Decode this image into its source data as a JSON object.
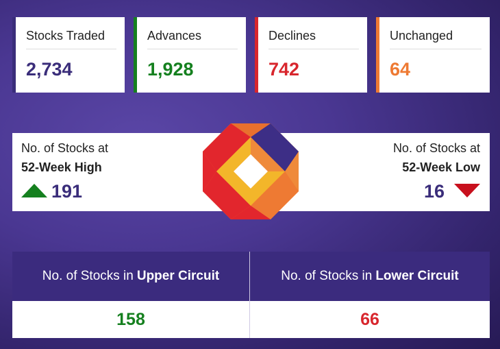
{
  "cards": [
    {
      "label": "Stocks Traded",
      "value": "2,734",
      "color": "#3a2d7a"
    },
    {
      "label": "Advances",
      "value": "1,928",
      "color": "#15801f"
    },
    {
      "label": "Declines",
      "value": "742",
      "color": "#d8262d"
    },
    {
      "label": "Unchanged",
      "value": "64",
      "color": "#ee7a33"
    }
  ],
  "week52": {
    "high_line1": "No. of Stocks at",
    "high_line2": "52-Week High",
    "high_value": "191",
    "high_icon": "triangle-up-icon",
    "low_line1": "No. of Stocks at",
    "low_line2": "52-Week Low",
    "low_value": "16",
    "low_icon": "triangle-down-icon"
  },
  "circuit": {
    "upper_prefix": "No. of Stocks in",
    "upper_bold": "Upper Circuit",
    "upper_value": "158",
    "lower_prefix": "No. of Stocks in",
    "lower_bold": "Lower Circuit",
    "lower_value": "66"
  },
  "logo_icon": "octagon-logo-icon"
}
